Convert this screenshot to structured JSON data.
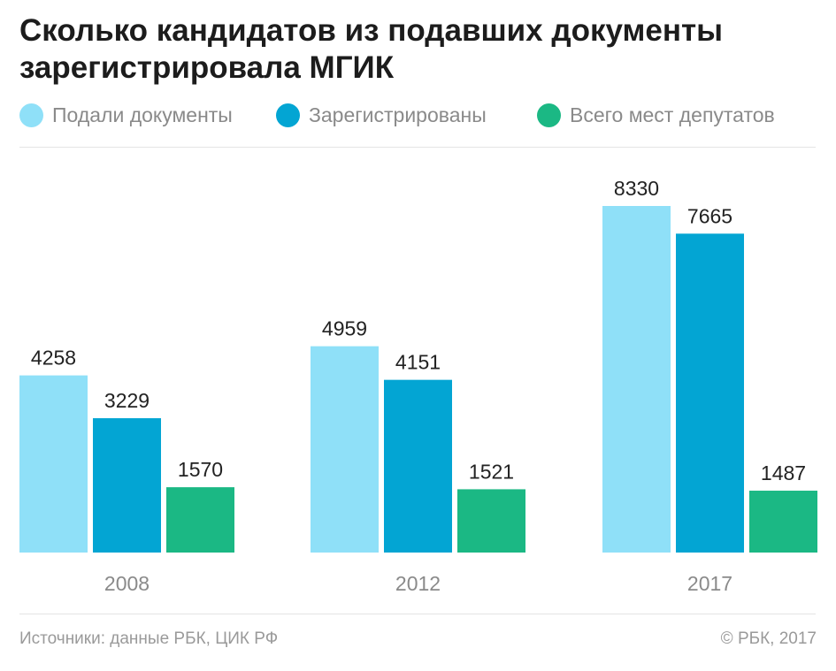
{
  "title": "Сколько кандидатов из подавших документы зарегистрировала МГИК",
  "legend": [
    {
      "label": "Подали документы",
      "color": "#8fe0f8"
    },
    {
      "label": "Зарегистрированы",
      "color": "#03a5d3"
    },
    {
      "label": "Всего мест депутатов",
      "color": "#1bb884"
    }
  ],
  "footer": {
    "source": "Источники: данные РБК, ЦИК РФ",
    "copyright": "© РБК, 2017"
  },
  "chart_data": {
    "type": "bar",
    "categories": [
      "2008",
      "2012",
      "2017"
    ],
    "series": [
      {
        "name": "Подали документы",
        "values": [
          4258,
          4959,
          8330
        ],
        "color": "#8fe0f8"
      },
      {
        "name": "Зарегистрированы",
        "values": [
          3229,
          4151,
          7665
        ],
        "color": "#03a5d3"
      },
      {
        "name": "Всего мест депутатов",
        "values": [
          1570,
          1521,
          1487
        ],
        "color": "#1bb884"
      }
    ],
    "ylim": [
      0,
      8330
    ],
    "grid": false,
    "legend_position": "top"
  }
}
